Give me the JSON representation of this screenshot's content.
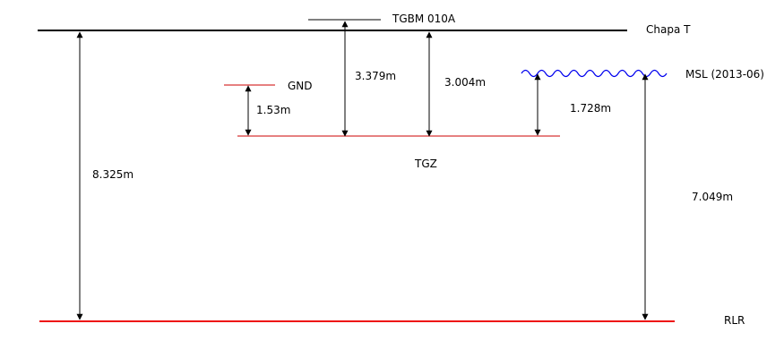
{
  "colors": {
    "black": "#000000",
    "red": "#cc0000",
    "bright_red": "#ee1111",
    "blue": "#0000ee"
  },
  "levels": {
    "chapa_t": "Chapa T",
    "tgbm": "TGBM  010A",
    "gnd": "GND",
    "msl": "MSL (2013-06)",
    "tgz": "TGZ",
    "rlr": "RLR"
  },
  "measurements": {
    "chapa_to_rlr": "8.325m",
    "tgbm_to_tgz": "3.379m",
    "chapa_to_tgz": "3.004m",
    "gnd_to_tgz": "1.53m",
    "msl_to_tgz": "1.728m",
    "msl_to_rlr": "7.049m"
  }
}
